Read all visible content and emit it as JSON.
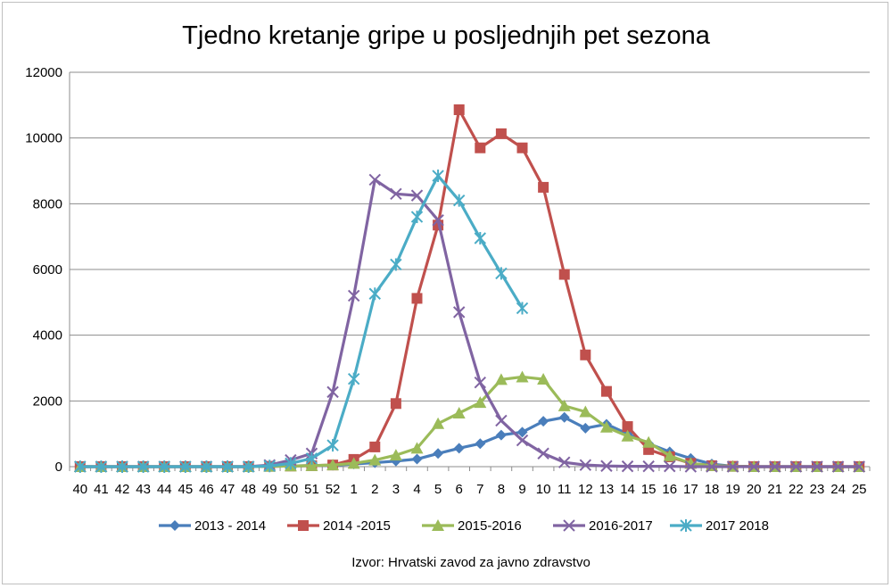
{
  "chart_data": {
    "type": "line",
    "title": "Tjedno kretanje gripe u posljednjih pet sezona",
    "xlabel": "",
    "ylabel": "",
    "ylim": [
      0,
      12000
    ],
    "yticks": [
      0,
      2000,
      4000,
      6000,
      8000,
      10000,
      12000
    ],
    "grid": true,
    "legend_position": "bottom",
    "categories": [
      "40",
      "41",
      "42",
      "43",
      "44",
      "45",
      "46",
      "47",
      "48",
      "49",
      "50",
      "51",
      "52",
      "1",
      "2",
      "3",
      "4",
      "5",
      "6",
      "7",
      "8",
      "9",
      "10",
      "11",
      "12",
      "13",
      "14",
      "15",
      "16",
      "17",
      "18",
      "19",
      "20",
      "21",
      "22",
      "23",
      "24",
      "25"
    ],
    "series": [
      {
        "name": "2013 - 2014",
        "color": "#4a7ebb",
        "marker": "diamond",
        "values": [
          0,
          0,
          0,
          0,
          0,
          0,
          0,
          0,
          0,
          10,
          20,
          30,
          40,
          80,
          120,
          170,
          230,
          400,
          560,
          700,
          960,
          1050,
          1380,
          1500,
          1170,
          1290,
          1000,
          700,
          450,
          250,
          80,
          10,
          0,
          0,
          0,
          0,
          0,
          0
        ]
      },
      {
        "name": "2014 -2015",
        "color": "#c0504d",
        "marker": "square",
        "values": [
          0,
          0,
          0,
          0,
          0,
          0,
          0,
          0,
          0,
          10,
          20,
          30,
          50,
          220,
          600,
          1920,
          5120,
          7350,
          10860,
          9700,
          10130,
          9700,
          8500,
          5850,
          3400,
          2290,
          1220,
          520,
          300,
          100,
          30,
          10,
          0,
          0,
          0,
          0,
          0,
          0
        ]
      },
      {
        "name": "2015-2016",
        "color": "#9bbb59",
        "marker": "triangle",
        "values": [
          0,
          0,
          0,
          0,
          0,
          0,
          0,
          0,
          0,
          10,
          20,
          30,
          50,
          100,
          200,
          350,
          560,
          1310,
          1630,
          1950,
          2650,
          2730,
          2660,
          1850,
          1670,
          1200,
          930,
          740,
          330,
          100,
          30,
          10,
          0,
          0,
          0,
          0,
          0,
          0
        ]
      },
      {
        "name": "2016-2017",
        "color": "#8064a2",
        "marker": "x",
        "values": [
          0,
          0,
          0,
          0,
          0,
          0,
          0,
          0,
          0,
          50,
          200,
          400,
          2270,
          5200,
          8730,
          8300,
          8250,
          7500,
          4700,
          2560,
          1400,
          800,
          400,
          130,
          50,
          20,
          10,
          10,
          10,
          0,
          0,
          0,
          0,
          0,
          0,
          0,
          0,
          0
        ]
      },
      {
        "name": "2017 2018",
        "color": "#4bacc6",
        "marker": "star",
        "values": [
          0,
          0,
          0,
          0,
          0,
          0,
          0,
          0,
          0,
          20,
          100,
          250,
          650,
          2670,
          5260,
          6150,
          7600,
          8850,
          8100,
          6950,
          5880,
          4820,
          null,
          null,
          null,
          null,
          null,
          null,
          null,
          null,
          null,
          null,
          null,
          null,
          null,
          null,
          null,
          null
        ]
      }
    ]
  },
  "source_note": "Izvor: Hrvatski zavod za javno zdravstvo"
}
